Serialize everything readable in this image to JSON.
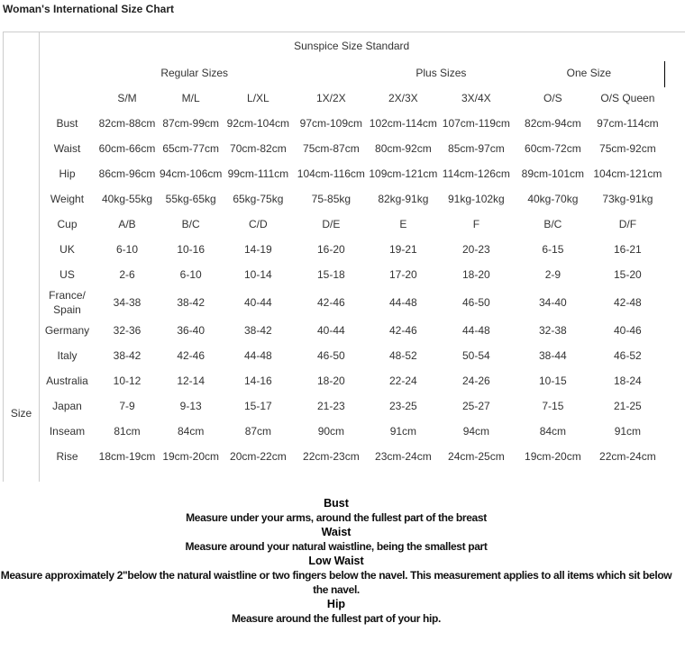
{
  "title": "Woman's International Size Chart",
  "table": {
    "side_label": "Size",
    "standard": "Sunspice Size Standard",
    "groups": {
      "regular": "Regular Sizes",
      "plus": "Plus Sizes",
      "one": "One Size"
    },
    "sizes": [
      "S/M",
      "M/L",
      "L/XL",
      "1X/2X",
      "2X/3X",
      "3X/4X",
      "O/S",
      "O/S Queen"
    ],
    "rows": [
      {
        "label": "Bust",
        "values": [
          "82cm-88cm",
          "87cm-99cm",
          "92cm-104cm",
          "97cm-109cm",
          "102cm-114cm",
          "107cm-119cm",
          "82cm-94cm",
          "97cm-114cm"
        ]
      },
      {
        "label": "Waist",
        "values": [
          "60cm-66cm",
          "65cm-77cm",
          "70cm-82cm",
          "75cm-87cm",
          "80cm-92cm",
          "85cm-97cm",
          "60cm-72cm",
          "75cm-92cm"
        ]
      },
      {
        "label": "Hip",
        "values": [
          "86cm-96cm",
          "94cm-106cm",
          "99cm-111cm",
          "104cm-116cm",
          "109cm-121cm",
          "114cm-126cm",
          "89cm-101cm",
          "104cm-121cm"
        ]
      },
      {
        "label": "Weight",
        "values": [
          "40kg-55kg",
          "55kg-65kg",
          "65kg-75kg",
          "75-85kg",
          "82kg-91kg",
          "91kg-102kg",
          "40kg-70kg",
          "73kg-91kg"
        ]
      },
      {
        "label": "Cup",
        "values": [
          "A/B",
          "B/C",
          "C/D",
          "D/E",
          "E",
          "F",
          "B/C",
          "D/F"
        ]
      },
      {
        "label": "UK",
        "values": [
          "6-10",
          "10-16",
          "14-19",
          "16-20",
          "19-21",
          "20-23",
          "6-15",
          "16-21"
        ]
      },
      {
        "label": "US",
        "values": [
          "2-6",
          "6-10",
          "10-14",
          "15-18",
          "17-20",
          "18-20",
          "2-9",
          "15-20"
        ]
      },
      {
        "label": "France/ Spain",
        "values": [
          "34-38",
          "38-42",
          "40-44",
          "42-46",
          "44-48",
          "46-50",
          "34-40",
          "42-48"
        ]
      },
      {
        "label": "Germany",
        "values": [
          "32-36",
          "36-40",
          "38-42",
          "40-44",
          "42-46",
          "44-48",
          "32-38",
          "40-46"
        ]
      },
      {
        "label": "Italy",
        "values": [
          "38-42",
          "42-46",
          "44-48",
          "46-50",
          "48-52",
          "50-54",
          "38-44",
          "46-52"
        ]
      },
      {
        "label": "Australia",
        "values": [
          "10-12",
          "12-14",
          "14-16",
          "18-20",
          "22-24",
          "24-26",
          "10-15",
          "18-24"
        ]
      },
      {
        "label": "Japan",
        "values": [
          "7-9",
          "9-13",
          "15-17",
          "21-23",
          "23-25",
          "25-27",
          "7-15",
          "21-25"
        ]
      },
      {
        "label": "Inseam",
        "values": [
          "81cm",
          "84cm",
          "87cm",
          "90cm",
          "91cm",
          "94cm",
          "84cm",
          "91cm"
        ]
      },
      {
        "label": "Rise",
        "values": [
          "18cm-19cm",
          "19cm-20cm",
          "20cm-22cm",
          "22cm-23cm",
          "23cm-24cm",
          "24cm-25cm",
          "19cm-20cm",
          "22cm-24cm"
        ]
      }
    ]
  },
  "notes": [
    {
      "heading": "Bust",
      "text": "Measure under your arms, around the fullest part of the breast"
    },
    {
      "heading": "Waist",
      "text": "Measure around your natural waistline, being the smallest part"
    },
    {
      "heading": "Low Waist",
      "text": "Measure approximately 2\"below the natural waistline or two fingers below the navel. This measurement applies to all items which sit below the navel."
    },
    {
      "heading": "Hip",
      "text": "Measure around the fullest part of your hip."
    }
  ]
}
